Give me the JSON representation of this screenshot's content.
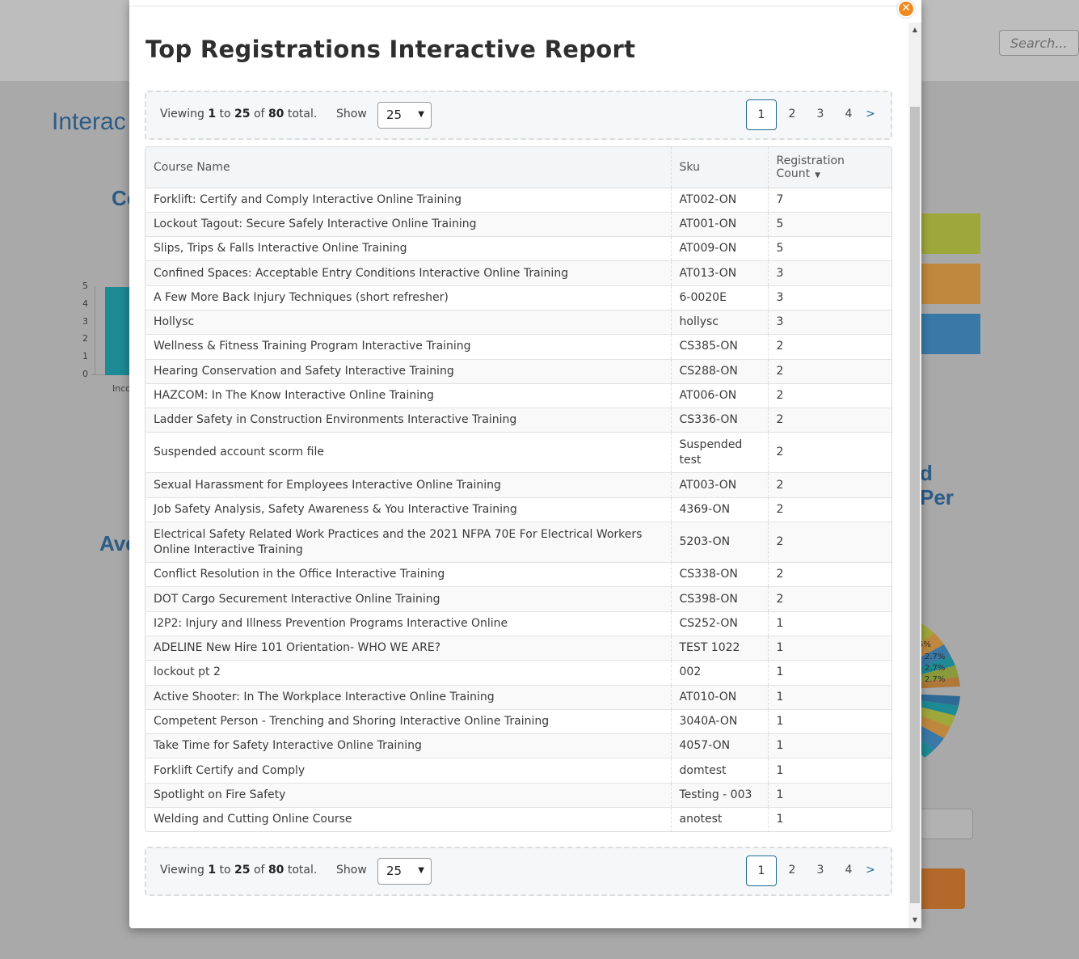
{
  "background": {
    "search_placeholder": "Search...",
    "title_fragment": "Interac",
    "heading_fragment_1": "Co",
    "heading_fragment_2": "Ave",
    "heading_fragment_3": "d",
    "heading_fragment_4": "Per",
    "bar_axis_ticks": [
      "5",
      "4",
      "3",
      "2",
      "1",
      "0"
    ],
    "bar_xlabel_fragment": "Inco",
    "pie_labels": [
      "5%",
      "2.7%",
      "2.7%",
      "2.7%"
    ],
    "colors": {
      "green_block": "#9ea83a",
      "orange_block": "#c0883e",
      "blue_block": "#3a78a8",
      "bar": "#1e8a95",
      "orange_button": "#b3692a"
    }
  },
  "modal": {
    "title": "Top Registrations Interactive Report",
    "close_icon": "close-icon",
    "pager": {
      "viewing_prefix": "Viewing",
      "from": "1",
      "to_word": "to",
      "to": "25",
      "of_word": "of",
      "total": "80",
      "total_word": "total.",
      "show_label": "Show",
      "page_size": "25",
      "pages": [
        "1",
        "2",
        "3",
        "4"
      ],
      "next": ">",
      "active_page": "1"
    },
    "table": {
      "headers": {
        "course_name": "Course Name",
        "sku": "Sku",
        "registration_count_1": "Registration",
        "registration_count_2": "Count"
      },
      "rows": [
        {
          "name": "Forklift: Certify and Comply Interactive Online Training",
          "sku": "AT002-ON",
          "count": "7"
        },
        {
          "name": "Lockout Tagout: Secure Safely Interactive Online Training",
          "sku": "AT001-ON",
          "count": "5"
        },
        {
          "name": "Slips, Trips & Falls Interactive Online Training",
          "sku": "AT009-ON",
          "count": "5"
        },
        {
          "name": "Confined Spaces: Acceptable Entry Conditions Interactive Online Training",
          "sku": "AT013-ON",
          "count": "3"
        },
        {
          "name": "A Few More Back Injury Techniques (short refresher)",
          "sku": "6-0020E",
          "count": "3"
        },
        {
          "name": "Hollysc",
          "sku": "hollysc",
          "count": "3"
        },
        {
          "name": "Wellness & Fitness Training Program Interactive Training",
          "sku": "CS385-ON",
          "count": "2"
        },
        {
          "name": "Hearing Conservation and Safety Interactive Training",
          "sku": "CS288-ON",
          "count": "2"
        },
        {
          "name": "HAZCOM: In The Know Interactive Online Training",
          "sku": "AT006-ON",
          "count": "2"
        },
        {
          "name": "Ladder Safety in Construction Environments Interactive Training",
          "sku": "CS336-ON",
          "count": "2"
        },
        {
          "name": "Suspended account scorm file",
          "sku": "Suspended test",
          "count": "2"
        },
        {
          "name": "Sexual Harassment for Employees Interactive Online Training",
          "sku": "AT003-ON",
          "count": "2"
        },
        {
          "name": "Job Safety Analysis, Safety Awareness & You Interactive Training",
          "sku": "4369-ON",
          "count": "2"
        },
        {
          "name": "Electrical Safety Related Work Practices and the 2021 NFPA 70E For Electrical Workers Online Interactive Training",
          "sku": "5203-ON",
          "count": "2"
        },
        {
          "name": "Conflict Resolution in the Office Interactive Training",
          "sku": "CS338-ON",
          "count": "2"
        },
        {
          "name": "DOT Cargo Securement Interactive Online Training",
          "sku": "CS398-ON",
          "count": "2"
        },
        {
          "name": "I2P2: Injury and Illness Prevention Programs Interactive Online",
          "sku": "CS252-ON",
          "count": "1"
        },
        {
          "name": "ADELINE New Hire 101 Orientation- WHO WE ARE?",
          "sku": "TEST 1022",
          "count": "1"
        },
        {
          "name": "lockout pt 2",
          "sku": "002",
          "count": "1"
        },
        {
          "name": "Active Shooter: In The Workplace Interactive Online Training",
          "sku": "AT010-ON",
          "count": "1"
        },
        {
          "name": "Competent Person - Trenching and Shoring Interactive Online Training",
          "sku": "3040A-ON",
          "count": "1"
        },
        {
          "name": "Take Time for Safety Interactive Online Training",
          "sku": "4057-ON",
          "count": "1"
        },
        {
          "name": "Forklift Certify and Comply",
          "sku": "domtest",
          "count": "1"
        },
        {
          "name": "Spotlight on Fire Safety",
          "sku": "Testing - 003",
          "count": "1"
        },
        {
          "name": "Welding and Cutting Online Course",
          "sku": "anotest",
          "count": "1"
        }
      ]
    }
  }
}
